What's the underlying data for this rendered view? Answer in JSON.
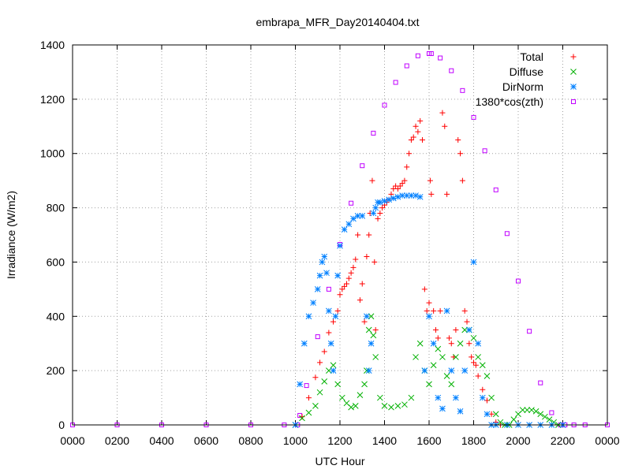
{
  "chart_data": {
    "type": "scatter",
    "title": "embrapa_MFR_Day20140404.txt",
    "xlabel": "UTC Hour",
    "ylabel": "Irradiance (W/m2)",
    "xlim": [
      0,
      24
    ],
    "ylim": [
      0,
      1400
    ],
    "x_ticks": [
      0,
      2,
      4,
      6,
      8,
      10,
      12,
      14,
      16,
      18,
      20,
      22,
      24
    ],
    "x_tick_labels": [
      "0000",
      "0200",
      "0400",
      "0600",
      "0800",
      "1000",
      "1200",
      "1400",
      "1600",
      "1800",
      "2000",
      "2200",
      "0000"
    ],
    "y_ticks": [
      0,
      200,
      400,
      600,
      800,
      1000,
      1200,
      1400
    ],
    "y_tick_labels": [
      "0",
      "200",
      "400",
      "600",
      "800",
      "1000",
      "1200",
      "1400"
    ],
    "grid": true,
    "legend_position": "top-right",
    "colors": {
      "Total": "#ff0000",
      "Diffuse": "#00b000",
      "DirNorm": "#0080ff",
      "model": "#c000ff"
    },
    "series": [
      {
        "name": "1380*cos(zth)",
        "marker": "square",
        "x": [
          0,
          2,
          4,
          6,
          8,
          9.5,
          10.1,
          10.2,
          10.5,
          11,
          11.5,
          12,
          12.5,
          13,
          13.5,
          14,
          14.5,
          15,
          15.5,
          16,
          16.1,
          16.5,
          17,
          17.5,
          18,
          18.5,
          19,
          19.5,
          20,
          20.5,
          21,
          21.5,
          21.9,
          22.1,
          22.5,
          23,
          24
        ],
        "y": [
          0,
          0,
          0,
          0,
          0,
          0,
          0,
          35,
          145,
          325,
          500,
          665,
          817,
          955,
          1075,
          1178,
          1262,
          1323,
          1360,
          1368,
          1368,
          1352,
          1305,
          1232,
          1133,
          1010,
          866,
          705,
          530,
          345,
          155,
          45,
          0,
          0,
          0,
          0,
          0
        ]
      },
      {
        "name": "Total",
        "marker": "plus",
        "x": [
          10.0,
          10.3,
          10.6,
          10.9,
          11.1,
          11.3,
          11.5,
          11.7,
          11.9,
          12.0,
          12.1,
          12.2,
          12.3,
          12.4,
          12.5,
          12.6,
          12.7,
          12.8,
          12.9,
          13.0,
          13.1,
          13.2,
          13.3,
          13.35,
          13.45,
          13.55,
          13.6,
          13.7,
          13.8,
          13.9,
          14.0,
          14.1,
          14.2,
          14.3,
          14.4,
          14.5,
          14.6,
          14.7,
          14.8,
          14.9,
          15.0,
          15.1,
          15.2,
          15.3,
          15.4,
          15.5,
          15.6,
          15.7,
          15.8,
          15.9,
          16.0,
          16.05,
          16.1,
          16.2,
          16.3,
          16.4,
          16.5,
          16.6,
          16.7,
          16.8,
          16.9,
          17.0,
          17.1,
          17.2,
          17.3,
          17.4,
          17.5,
          17.6,
          17.7,
          17.8,
          17.9,
          18.0,
          18.1,
          18.2,
          18.4,
          18.6,
          18.8,
          19.0,
          19.2
        ],
        "y": [
          0,
          30,
          100,
          175,
          230,
          270,
          340,
          380,
          420,
          480,
          500,
          510,
          520,
          540,
          560,
          580,
          610,
          700,
          460,
          520,
          380,
          620,
          700,
          780,
          900,
          600,
          350,
          760,
          780,
          800,
          810,
          820,
          830,
          850,
          870,
          880,
          870,
          880,
          890,
          900,
          950,
          1000,
          1050,
          1060,
          1100,
          1080,
          1120,
          1050,
          500,
          420,
          450,
          900,
          850,
          420,
          350,
          320,
          420,
          1150,
          1100,
          850,
          320,
          300,
          250,
          350,
          1050,
          1000,
          900,
          420,
          380,
          300,
          250,
          230,
          220,
          180,
          130,
          90,
          40,
          10,
          0
        ]
      },
      {
        "name": "Diffuse",
        "marker": "x",
        "x": [
          10.0,
          10.3,
          10.6,
          10.9,
          11.1,
          11.3,
          11.5,
          11.7,
          11.9,
          12.1,
          12.3,
          12.5,
          12.7,
          12.9,
          13.1,
          13.2,
          13.3,
          13.4,
          13.5,
          13.6,
          13.8,
          14.0,
          14.3,
          14.6,
          14.9,
          15.2,
          15.4,
          15.6,
          15.8,
          16.0,
          16.2,
          16.4,
          16.6,
          16.8,
          17.0,
          17.2,
          17.4,
          17.6,
          17.8,
          18.0,
          18.2,
          18.4,
          18.6,
          18.8,
          19.0,
          19.2,
          19.4,
          19.6,
          19.8,
          20.0,
          20.2,
          20.4,
          20.6,
          20.8,
          21.0,
          21.2,
          21.4,
          21.6,
          21.8
        ],
        "y": [
          0,
          25,
          45,
          70,
          120,
          160,
          200,
          220,
          150,
          100,
          80,
          65,
          70,
          110,
          150,
          200,
          350,
          400,
          330,
          250,
          100,
          70,
          65,
          70,
          75,
          100,
          250,
          300,
          200,
          150,
          220,
          280,
          250,
          180,
          150,
          250,
          300,
          350,
          350,
          320,
          250,
          220,
          180,
          100,
          40,
          10,
          0,
          0,
          20,
          40,
          55,
          55,
          55,
          50,
          40,
          30,
          20,
          10,
          0
        ]
      },
      {
        "name": "DirNorm",
        "marker": "star",
        "x": [
          10.0,
          10.2,
          10.4,
          10.6,
          10.8,
          11.0,
          11.1,
          11.2,
          11.3,
          11.4,
          11.5,
          11.6,
          11.7,
          11.8,
          11.9,
          12.0,
          12.2,
          12.4,
          12.6,
          12.8,
          13.0,
          13.2,
          13.3,
          13.4,
          13.5,
          13.6,
          13.7,
          13.8,
          14.0,
          14.2,
          14.4,
          14.6,
          14.8,
          15.0,
          15.2,
          15.4,
          15.6,
          15.8,
          16.0,
          16.2,
          16.4,
          16.6,
          16.8,
          17.0,
          17.2,
          17.4,
          17.6,
          17.8,
          18.0,
          18.2,
          18.4,
          18.6,
          18.8,
          19.0,
          19.5,
          20.0,
          20.5,
          21.0,
          21.5,
          22.0
        ],
        "y": [
          0,
          150,
          300,
          400,
          450,
          500,
          550,
          600,
          620,
          560,
          420,
          300,
          200,
          400,
          550,
          660,
          720,
          740,
          760,
          770,
          770,
          400,
          200,
          300,
          780,
          800,
          820,
          820,
          825,
          830,
          835,
          840,
          845,
          845,
          845,
          845,
          840,
          200,
          400,
          300,
          100,
          60,
          420,
          200,
          100,
          50,
          200,
          350,
          600,
          300,
          100,
          40,
          0,
          0,
          0,
          0,
          0,
          0,
          0,
          0
        ]
      }
    ]
  }
}
